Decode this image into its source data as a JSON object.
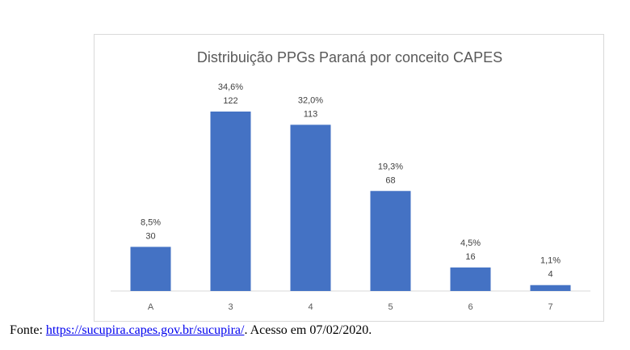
{
  "chart_data": {
    "type": "bar",
    "title": "Distribuição PPGs Paraná por conceito CAPES",
    "xlabel": "",
    "ylabel": "",
    "categories": [
      "A",
      "3",
      "4",
      "5",
      "6",
      "7"
    ],
    "values": [
      30,
      122,
      113,
      68,
      16,
      4
    ],
    "percent_labels": [
      "8,5%",
      "34,6%",
      "32,0%",
      "19,3%",
      "4,5%",
      "1,1%"
    ],
    "value_labels": [
      "30",
      "122",
      "113",
      "68",
      "16",
      "4"
    ],
    "ylim": [
      0,
      122
    ],
    "grid": false,
    "legend": "none",
    "bar_color": "#4472c4"
  },
  "source": {
    "prefix": "Fonte: ",
    "link_text": "https://sucupira.capes.gov.br/sucupira/",
    "suffix": ". Acesso em 07/02/2020."
  }
}
